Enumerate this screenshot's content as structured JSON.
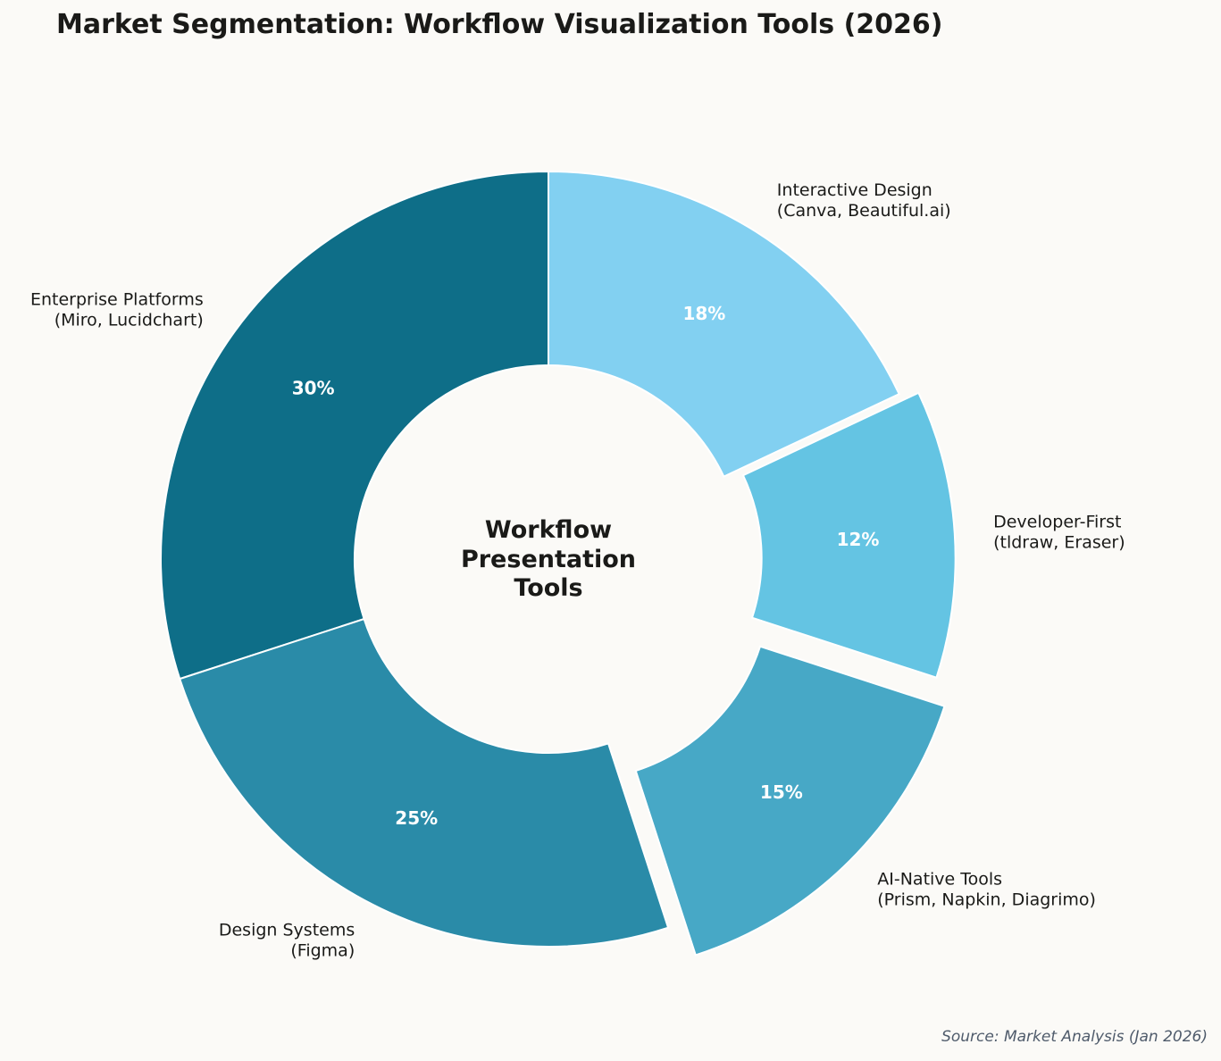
{
  "title": "Market Segmentation: Workflow Visualization Tools (2026)",
  "source": "Source: Market Analysis (Jan 2026)",
  "center_label": [
    "Workflow",
    "Presentation",
    "Tools"
  ],
  "chart_data": {
    "type": "pie",
    "variant": "donut",
    "title": "Market Segmentation: Workflow Visualization Tools (2026)",
    "center_text": "Workflow Presentation Tools",
    "start_angle_deg": 90,
    "direction": "counterclockwise",
    "categories": [
      "Enterprise Platforms (Miro, Lucidchart)",
      "Design Systems (Figma)",
      "AI-Native Tools (Prism, Napkin, Diagrimo)",
      "Developer-First (tldraw, Eraser)",
      "Interactive Design (Canva, Beautiful.ai)"
    ],
    "values": [
      30,
      25,
      15,
      12,
      18
    ],
    "value_labels": [
      "30%",
      "25%",
      "15%",
      "12%",
      "18%"
    ],
    "colors": [
      "#0e6e88",
      "#2a8ba8",
      "#47a8c6",
      "#64c4e3",
      "#82d0f1"
    ],
    "explode": [
      0,
      0,
      0.1,
      0.05,
      0
    ],
    "segments": [
      {
        "name": "Enterprise Platforms",
        "tools": "(Miro, Lucidchart)",
        "value": 30,
        "pct": "30%",
        "color": "#0e6e88",
        "explode": 0
      },
      {
        "name": "Design Systems",
        "tools": "(Figma)",
        "value": 25,
        "pct": "25%",
        "color": "#2a8ba8",
        "explode": 0
      },
      {
        "name": "AI-Native Tools",
        "tools": "(Prism, Napkin, Diagrimo)",
        "value": 15,
        "pct": "15%",
        "color": "#47a8c6",
        "explode": 0.1
      },
      {
        "name": "Developer-First",
        "tools": "(tldraw, Eraser)",
        "value": 12,
        "pct": "12%",
        "color": "#64c4e3",
        "explode": 0.05
      },
      {
        "name": "Interactive Design",
        "tools": "(Canva, Beautiful.ai)",
        "value": 18,
        "pct": "18%",
        "color": "#82d0f1",
        "explode": 0
      }
    ],
    "source": "Source: Market Analysis (Jan 2026)"
  }
}
